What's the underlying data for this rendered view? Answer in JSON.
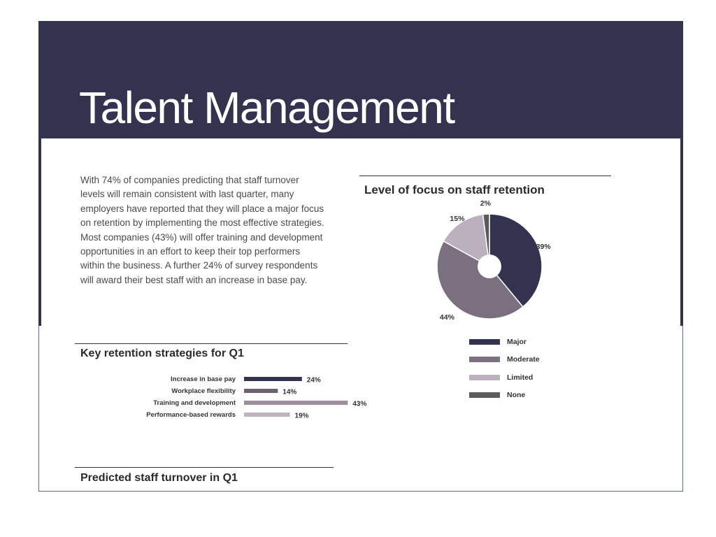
{
  "page": {
    "title": "Talent Management",
    "intro": "With 74% of companies predicting that staff turnover levels will remain consistent with last quarter, many employers have reported that they will place a major focus on retention by implementing the most effective strategies. Most companies (43%) will offer training and development opportunities in an effort to keep their top performers within the business. A further 24% of survey respondents will award their best staff with an increase in base pay.",
    "footer_section_title": "Predicted staff turnover in Q1"
  },
  "colors": {
    "banner": "#34334f"
  },
  "chart_data": [
    {
      "type": "pie",
      "title": "Level of focus on staff retention",
      "labels": [
        "Major",
        "Moderate",
        "Limited",
        "None"
      ],
      "values": [
        39,
        44,
        15,
        2
      ],
      "value_labels": [
        "39%",
        "44%",
        "15%",
        "2%"
      ],
      "colors": [
        "#34334f",
        "#7b7080",
        "#bbb0bd",
        "#5c5c5c"
      ],
      "donut": true,
      "legend": "below"
    },
    {
      "type": "bar",
      "orientation": "horizontal",
      "title": "Key retention strategies for Q1",
      "categories": [
        "Increase in base pay",
        "Workplace flexibility",
        "Training and development",
        "Performance-based rewards"
      ],
      "values": [
        24,
        14,
        43,
        19
      ],
      "value_labels": [
        "24%",
        "14%",
        "43%",
        "19%"
      ],
      "colors": [
        "#34334f",
        "#6d6272",
        "#9e8f9f",
        "#c0b3bf"
      ]
    }
  ]
}
